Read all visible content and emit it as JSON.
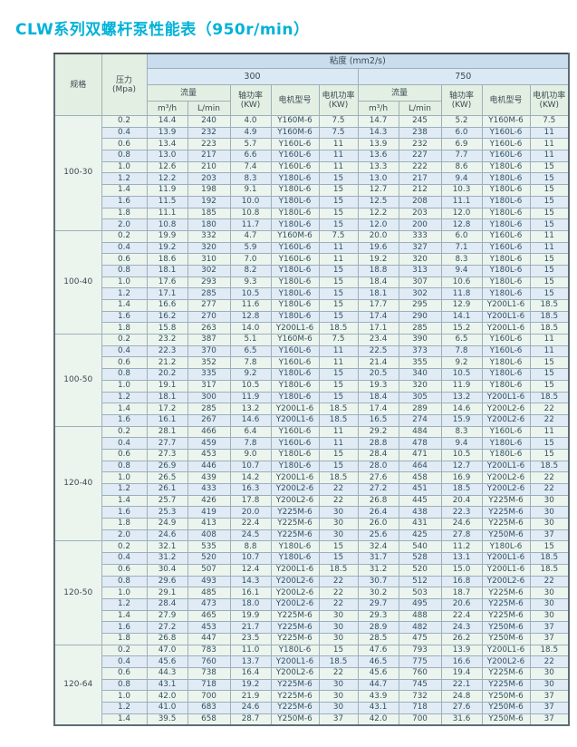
{
  "page_title": "CLW系列双螺杆泵性能表（950r/min）",
  "colors": {
    "title": "#00b2d8",
    "header_blue": "#c9ddee",
    "header_blue_light": "#dbe9f5",
    "header_green": "#e3efe3",
    "row_green": "#ecf4ee",
    "row_blue": "#e0ebf6",
    "spec_cell_blue": "#d8e7f3",
    "border": "#9cb0ba"
  },
  "table": {
    "header": {
      "spec": "规格",
      "pressure_line1": "压力",
      "pressure_line2": "(Mpa)",
      "viscosity": "粘度 (mm2/s)",
      "viscosity_300": "300",
      "viscosity_750": "750",
      "flow": "流量",
      "flow_m3h": "m³/h",
      "flow_lmin": "L/min",
      "shaft_power_line1": "轴功率",
      "shaft_power_line2": "(KW)",
      "motor_model": "电机型号",
      "motor_power_line1": "电机功率",
      "motor_power_line2": "(KW)"
    },
    "column_keys": [
      "pressure",
      "flow_m3h_300",
      "flow_lmin_300",
      "shaft_kw_300",
      "motor_model_300",
      "motor_kw_300",
      "flow_m3h_750",
      "flow_lmin_750",
      "shaft_kw_750",
      "motor_model_750",
      "motor_kw_750"
    ],
    "groups": [
      {
        "spec": "100-30",
        "rows": [
          [
            "0.2",
            "14.4",
            "240",
            "4.0",
            "Y160M-6",
            "7.5",
            "14.7",
            "245",
            "5.2",
            "Y160M-6",
            "7.5"
          ],
          [
            "0.4",
            "13.9",
            "232",
            "4.9",
            "Y160M-6",
            "7.5",
            "14.3",
            "238",
            "6.0",
            "Y160L-6",
            "11"
          ],
          [
            "0.6",
            "13.4",
            "223",
            "5.7",
            "Y160L-6",
            "11",
            "13.9",
            "232",
            "6.9",
            "Y160L-6",
            "11"
          ],
          [
            "0.8",
            "13.0",
            "217",
            "6.6",
            "Y160L-6",
            "11",
            "13.6",
            "227",
            "7.7",
            "Y160L-6",
            "11"
          ],
          [
            "1.0",
            "12.6",
            "210",
            "7.4",
            "Y160L-6",
            "11",
            "13.3",
            "222",
            "8.6",
            "Y180L-6",
            "15"
          ],
          [
            "1.2",
            "12.2",
            "203",
            "8.3",
            "Y180L-6",
            "15",
            "13.0",
            "217",
            "9.4",
            "Y180L-6",
            "15"
          ],
          [
            "1.4",
            "11.9",
            "198",
            "9.1",
            "Y180L-6",
            "15",
            "12.7",
            "212",
            "10.3",
            "Y180L-6",
            "15"
          ],
          [
            "1.6",
            "11.5",
            "192",
            "10.0",
            "Y180L-6",
            "15",
            "12.5",
            "208",
            "11.1",
            "Y180L-6",
            "15"
          ],
          [
            "1.8",
            "11.1",
            "185",
            "10.8",
            "Y180L-6",
            "15",
            "12.2",
            "203",
            "12.0",
            "Y180L-6",
            "15"
          ],
          [
            "2.0",
            "10.8",
            "180",
            "11.7",
            "Y180L-6",
            "15",
            "12.0",
            "200",
            "12.8",
            "Y180L-6",
            "15"
          ]
        ]
      },
      {
        "spec": "100-40",
        "rows": [
          [
            "0.2",
            "19.9",
            "332",
            "4.7",
            "Y160M-6",
            "7.5",
            "20.0",
            "333",
            "6.0",
            "Y160L-6",
            "11"
          ],
          [
            "0.4",
            "19.2",
            "320",
            "5.9",
            "Y160L-6",
            "11",
            "19.6",
            "327",
            "7.1",
            "Y160L-6",
            "11"
          ],
          [
            "0.6",
            "18.6",
            "310",
            "7.0",
            "Y160L-6",
            "11",
            "19.2",
            "320",
            "8.3",
            "Y180L-6",
            "15"
          ],
          [
            "0.8",
            "18.1",
            "302",
            "8.2",
            "Y180L-6",
            "15",
            "18.8",
            "313",
            "9.4",
            "Y180L-6",
            "15"
          ],
          [
            "1.0",
            "17.6",
            "293",
            "9.3",
            "Y180L-6",
            "15",
            "18.4",
            "307",
            "10.6",
            "Y180L-6",
            "15"
          ],
          [
            "1.2",
            "17.1",
            "285",
            "10.5",
            "Y180L-6",
            "15",
            "18.1",
            "302",
            "11.8",
            "Y180L-6",
            "15"
          ],
          [
            "1.4",
            "16.6",
            "277",
            "11.6",
            "Y180L-6",
            "15",
            "17.7",
            "295",
            "12.9",
            "Y200L1-6",
            "18.5"
          ],
          [
            "1.6",
            "16.2",
            "270",
            "12.8",
            "Y180L-6",
            "15",
            "17.4",
            "290",
            "14.1",
            "Y200L1-6",
            "18.5"
          ],
          [
            "1.8",
            "15.8",
            "263",
            "14.0",
            "Y200L1-6",
            "18.5",
            "17.1",
            "285",
            "15.2",
            "Y200L1-6",
            "18.5"
          ]
        ]
      },
      {
        "spec": "100-50",
        "rows": [
          [
            "0.2",
            "23.2",
            "387",
            "5.1",
            "Y160M-6",
            "7.5",
            "23.4",
            "390",
            "6.5",
            "Y160L-6",
            "11"
          ],
          [
            "0.4",
            "22.3",
            "370",
            "6.5",
            "Y160L-6",
            "11",
            "22.5",
            "373",
            "7.8",
            "Y160L-6",
            "11"
          ],
          [
            "0.6",
            "21.2",
            "352",
            "7.8",
            "Y160L-6",
            "11",
            "21.4",
            "355",
            "9.2",
            "Y180L-6",
            "15"
          ],
          [
            "0.8",
            "20.2",
            "335",
            "9.2",
            "Y180L-6",
            "15",
            "20.5",
            "340",
            "10.5",
            "Y180L-6",
            "15"
          ],
          [
            "1.0",
            "19.1",
            "317",
            "10.5",
            "Y180L-6",
            "15",
            "19.3",
            "320",
            "11.9",
            "Y180L-6",
            "15"
          ],
          [
            "1.2",
            "18.1",
            "300",
            "11.9",
            "Y180L-6",
            "15",
            "18.4",
            "305",
            "13.2",
            "Y200L1-6",
            "18.5"
          ],
          [
            "1.4",
            "17.2",
            "285",
            "13.2",
            "Y200L1-6",
            "18.5",
            "17.4",
            "289",
            "14.6",
            "Y200L2-6",
            "22"
          ],
          [
            "1.6",
            "16.1",
            "267",
            "14.6",
            "Y200L1-6",
            "18.5",
            "16.5",
            "274",
            "15.9",
            "Y200L2-6",
            "22"
          ]
        ]
      },
      {
        "spec": "120-40",
        "rows": [
          [
            "0.2",
            "28.1",
            "466",
            "6.4",
            "Y160L-6",
            "11",
            "29.2",
            "484",
            "8.3",
            "Y160L-6",
            "11"
          ],
          [
            "0.4",
            "27.7",
            "459",
            "7.8",
            "Y160L-6",
            "11",
            "28.8",
            "478",
            "9.4",
            "Y180L-6",
            "15"
          ],
          [
            "0.6",
            "27.3",
            "453",
            "9.0",
            "Y180L-6",
            "15",
            "28.4",
            "471",
            "10.5",
            "Y180L-6",
            "15"
          ],
          [
            "0.8",
            "26.9",
            "446",
            "10.7",
            "Y180L-6",
            "15",
            "28.0",
            "464",
            "12.7",
            "Y200L1-6",
            "18.5"
          ],
          [
            "1.0",
            "26.5",
            "439",
            "14.2",
            "Y200L1-6",
            "18.5",
            "27.6",
            "458",
            "16.9",
            "Y200L2-6",
            "22"
          ],
          [
            "1.2",
            "26.1",
            "433",
            "16.3",
            "Y200L2-6",
            "22",
            "27.2",
            "451",
            "18.5",
            "Y200L2-6",
            "22"
          ],
          [
            "1.4",
            "25.7",
            "426",
            "17.8",
            "Y200L2-6",
            "22",
            "26.8",
            "445",
            "20.4",
            "Y225M-6",
            "30"
          ],
          [
            "1.6",
            "25.3",
            "419",
            "20.0",
            "Y225M-6",
            "30",
            "26.4",
            "438",
            "22.3",
            "Y225M-6",
            "30"
          ],
          [
            "1.8",
            "24.9",
            "413",
            "22.4",
            "Y225M-6",
            "30",
            "26.0",
            "431",
            "24.6",
            "Y225M-6",
            "30"
          ],
          [
            "2.0",
            "24.6",
            "408",
            "24.5",
            "Y225M-6",
            "30",
            "25.6",
            "425",
            "27.8",
            "Y250M-6",
            "37"
          ]
        ]
      },
      {
        "spec": "120-50",
        "rows": [
          [
            "0.2",
            "32.1",
            "535",
            "8.8",
            "Y180L-6",
            "15",
            "32.4",
            "540",
            "11.2",
            "Y180L-6",
            "15"
          ],
          [
            "0.4",
            "31.2",
            "520",
            "10.7",
            "Y180L-6",
            "15",
            "31.7",
            "528",
            "13.1",
            "Y200L1-6",
            "18.5"
          ],
          [
            "0.6",
            "30.4",
            "507",
            "12.4",
            "Y200L1-6",
            "18.5",
            "31.2",
            "520",
            "15.0",
            "Y200L1-6",
            "18.5"
          ],
          [
            "0.8",
            "29.6",
            "493",
            "14.3",
            "Y200L2-6",
            "22",
            "30.7",
            "512",
            "16.8",
            "Y200L2-6",
            "22"
          ],
          [
            "1.0",
            "29.1",
            "485",
            "16.1",
            "Y200L2-6",
            "22",
            "30.2",
            "503",
            "18.7",
            "Y225M-6",
            "30"
          ],
          [
            "1.2",
            "28.4",
            "473",
            "18.0",
            "Y200L2-6",
            "22",
            "29.7",
            "495",
            "20.6",
            "Y225M-6",
            "30"
          ],
          [
            "1.4",
            "27.9",
            "465",
            "19.9",
            "Y225M-6",
            "30",
            "29.3",
            "488",
            "22.4",
            "Y225M-6",
            "30"
          ],
          [
            "1.6",
            "27.2",
            "453",
            "21.7",
            "Y225M-6",
            "30",
            "28.9",
            "482",
            "24.3",
            "Y250M-6",
            "37"
          ],
          [
            "1.8",
            "26.8",
            "447",
            "23.5",
            "Y225M-6",
            "30",
            "28.5",
            "475",
            "26.2",
            "Y250M-6",
            "37"
          ]
        ]
      },
      {
        "spec": "120-64",
        "rows": [
          [
            "0.2",
            "47.0",
            "783",
            "11.0",
            "Y180L-6",
            "15",
            "47.6",
            "793",
            "13.9",
            "Y200L1-6",
            "18.5"
          ],
          [
            "0.4",
            "45.6",
            "760",
            "13.7",
            "Y200L1-6",
            "18.5",
            "46.5",
            "775",
            "16.6",
            "Y200L2-6",
            "22"
          ],
          [
            "0.6",
            "44.3",
            "738",
            "16.4",
            "Y200L2-6",
            "22",
            "45.6",
            "760",
            "19.4",
            "Y225M-6",
            "30"
          ],
          [
            "0.8",
            "43.1",
            "718",
            "19.2",
            "Y225M-6",
            "30",
            "44.7",
            "745",
            "22.1",
            "Y225M-6",
            "30"
          ],
          [
            "1.0",
            "42.0",
            "700",
            "21.9",
            "Y225M-6",
            "30",
            "43.9",
            "732",
            "24.8",
            "Y250M-6",
            "37"
          ],
          [
            "1.2",
            "41.0",
            "683",
            "24.6",
            "Y225M-6",
            "30",
            "43.1",
            "718",
            "27.6",
            "Y250M-6",
            "37"
          ],
          [
            "1.4",
            "39.5",
            "658",
            "28.7",
            "Y250M-6",
            "37",
            "42.0",
            "700",
            "31.6",
            "Y250M-6",
            "37"
          ]
        ]
      }
    ]
  }
}
